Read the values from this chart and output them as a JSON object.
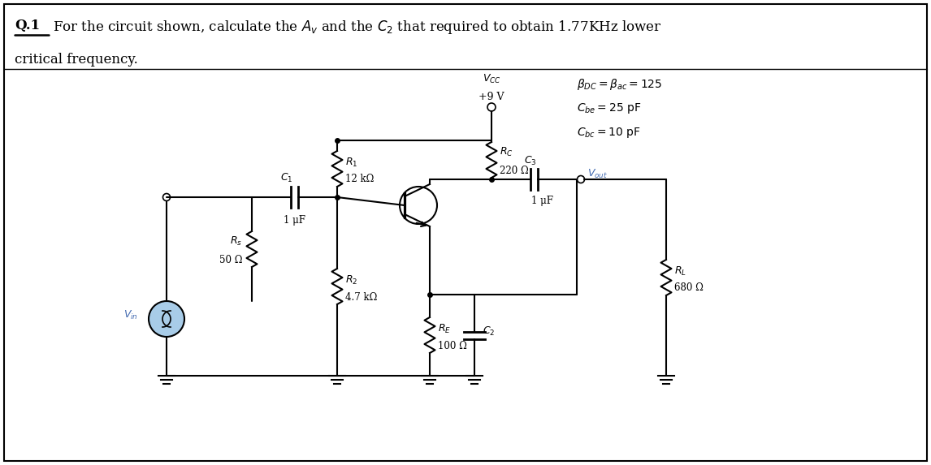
{
  "bg_color": "#ffffff",
  "line_color": "#000000",
  "text_color": "#000000",
  "blue_color": "#4169b0",
  "title_q": "Q.1",
  "params_line1": "$\\beta_{DC} = \\beta_{ac} = 125$",
  "params_line2": "$C_{be} = 25\\ \\mathrm{pF}$",
  "params_line3": "$C_{bc} = 10\\ \\mathrm{pF}$",
  "R1_label": "$R_1$",
  "R1_val": "12 kΩ",
  "R2_label": "$R_2$",
  "R2_val": "4.7 kΩ",
  "RC_label": "$R_C$",
  "RC_val": "220 Ω",
  "RE_label": "$R_E$",
  "RE_val": "100 Ω",
  "RL_label": "$R_L$",
  "RL_val": "680 Ω",
  "Rs_label": "$R_s$",
  "Rs_val": "50 Ω",
  "C1_label": "$C_1$",
  "C1_val": "1 μF",
  "C2_label": "$C_2$",
  "C3_label": "$C_3$",
  "C3_val": "1 μF",
  "Vcc_label": "$V_{CC}$",
  "Vcc_val": "+9 V",
  "Vin_label": "$V_{in}$",
  "Vout_label": "$V_{out}$"
}
